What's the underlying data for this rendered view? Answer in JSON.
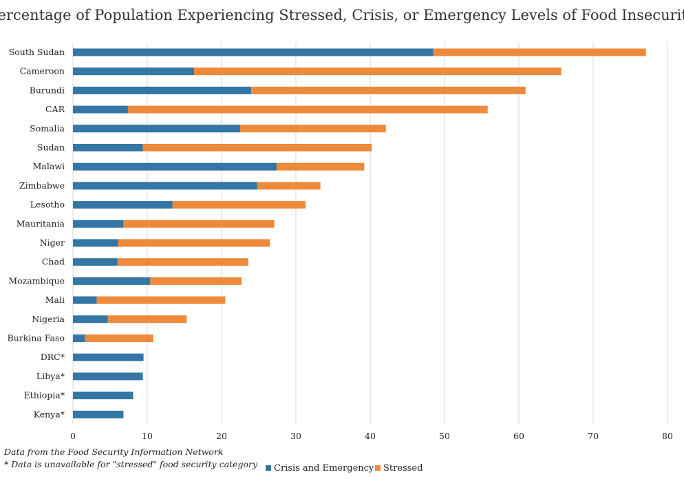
{
  "chart_data": {
    "type": "bar",
    "orientation": "horizontal",
    "stacked": true,
    "title": "Percentage of Population Experiencing Stressed, Crisis, or Emergency Levels of Food Insecurity",
    "categories": [
      "South Sudan",
      "Cameroon",
      "Burundi",
      "CAR",
      "Somalia",
      "Sudan",
      "Malawi",
      "Zimbabwe",
      "Lesotho",
      "Mauritania",
      "Niger",
      "Chad",
      "Mozambique",
      "Mali",
      "Nigeria",
      "Burkina Faso",
      "DRC*",
      "Libya*",
      "Ethiopia*",
      "Kenya*"
    ],
    "series": [
      {
        "name": "Crisis and Emergency",
        "color": "#3476a5",
        "values": [
          48.5,
          16.3,
          24.0,
          7.4,
          22.5,
          9.4,
          27.4,
          24.8,
          13.4,
          6.8,
          6.1,
          6.0,
          10.4,
          3.2,
          4.7,
          1.6,
          9.5,
          9.4,
          8.1,
          6.8
        ]
      },
      {
        "name": "Stressed",
        "color": "#ee8a3b",
        "values": [
          28.6,
          49.4,
          36.9,
          48.4,
          19.6,
          30.8,
          11.8,
          8.5,
          17.9,
          20.3,
          20.4,
          17.6,
          12.3,
          17.3,
          10.6,
          9.2,
          0,
          0,
          0,
          0
        ]
      }
    ],
    "xlim": [
      0,
      80
    ],
    "xticks": [
      0,
      10,
      20,
      30,
      40,
      50,
      60,
      70,
      80
    ],
    "grid": true,
    "legend_position": "bottom",
    "notes": [
      "Data from the Food Security Information Network",
      "* Data is unavailable for \"stressed\" food security category"
    ]
  }
}
